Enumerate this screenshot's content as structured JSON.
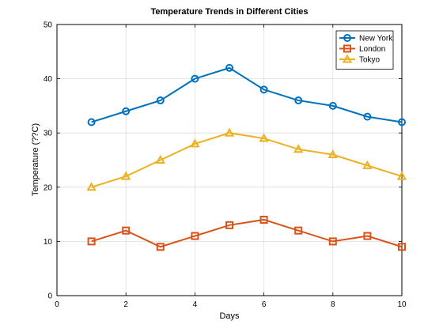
{
  "chart_data": {
    "type": "line",
    "title": "Temperature Trends in Different Cities",
    "xlabel": "Days",
    "ylabel": "Temperature (??C)",
    "xlim": [
      0,
      10
    ],
    "ylim": [
      0,
      50
    ],
    "xticks": [
      0,
      2,
      4,
      6,
      8,
      10
    ],
    "yticks": [
      0,
      10,
      20,
      30,
      40,
      50
    ],
    "grid": true,
    "legend_position": "top-right",
    "x": [
      1,
      2,
      3,
      4,
      5,
      6,
      7,
      8,
      9,
      10
    ],
    "series": [
      {
        "name": "New York",
        "color": "#0072BD",
        "marker": "circle",
        "values": [
          32,
          34,
          36,
          40,
          42,
          38,
          36,
          35,
          33,
          32
        ]
      },
      {
        "name": "London",
        "color": "#D95319",
        "marker": "square",
        "values": [
          10,
          12,
          9,
          11,
          13,
          14,
          12,
          10,
          11,
          9
        ]
      },
      {
        "name": "Tokyo",
        "color": "#EDB120",
        "marker": "triangle",
        "values": [
          20,
          22,
          25,
          28,
          30,
          29,
          27,
          26,
          24,
          22
        ]
      }
    ]
  }
}
